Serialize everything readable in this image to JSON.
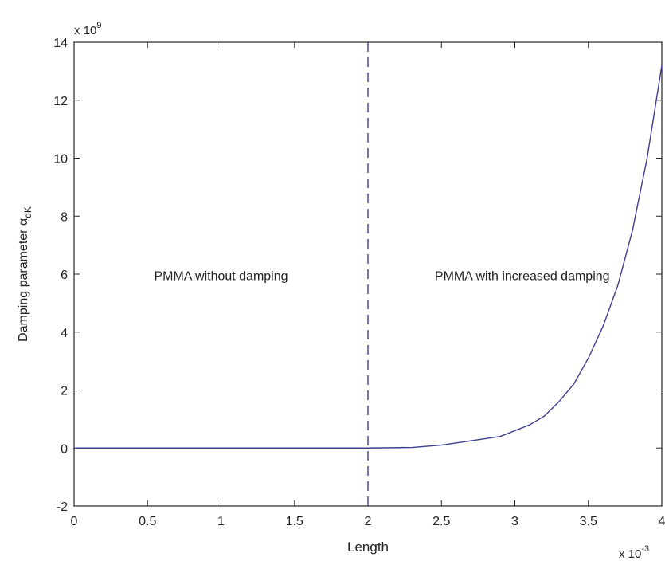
{
  "chart_data": {
    "type": "line",
    "xlabel": "Length",
    "ylabel_main": "Damping parameter α",
    "ylabel_sub": "dK",
    "x_exponent_label": "x 10",
    "x_exponent_power": "-3",
    "y_exponent_label": "x 10",
    "y_exponent_power": "9",
    "xlim": [
      0,
      4
    ],
    "ylim": [
      -2,
      14
    ],
    "xticks": [
      0,
      0.5,
      1,
      1.5,
      2,
      2.5,
      3,
      3.5,
      4
    ],
    "xtick_labels": [
      "0",
      "0.5",
      "1",
      "1.5",
      "2",
      "2.5",
      "3",
      "3.5",
      "4"
    ],
    "yticks": [
      -2,
      0,
      2,
      4,
      6,
      8,
      10,
      12,
      14
    ],
    "ytick_labels": [
      "-2",
      "0",
      "2",
      "4",
      "6",
      "8",
      "10",
      "12",
      "14"
    ],
    "grid": false,
    "series": [
      {
        "color": "#3b3f8f",
        "x": [
          0,
          2.0,
          2.3,
          2.5,
          2.7,
          2.9,
          3.0,
          3.1,
          3.2,
          3.3,
          3.4,
          3.5,
          3.6,
          3.7,
          3.8,
          3.9,
          4.0
        ],
        "y": [
          0,
          0,
          0.02,
          0.1,
          0.25,
          0.4,
          0.6,
          0.8,
          1.1,
          1.6,
          2.2,
          3.1,
          4.2,
          5.6,
          7.5,
          10.0,
          13.2
        ]
      }
    ],
    "vline": {
      "x": 2,
      "style": "dashed",
      "color": "#3b3f8f"
    },
    "annotations": [
      {
        "text": "PMMA without damping",
        "x": 1.0,
        "y": 5.8
      },
      {
        "text": "PMMA with increased damping",
        "x": 3.05,
        "y": 5.8
      }
    ]
  },
  "colors": {
    "line": "#3b3f8f",
    "axes": "#222222",
    "background": "#ffffff"
  }
}
